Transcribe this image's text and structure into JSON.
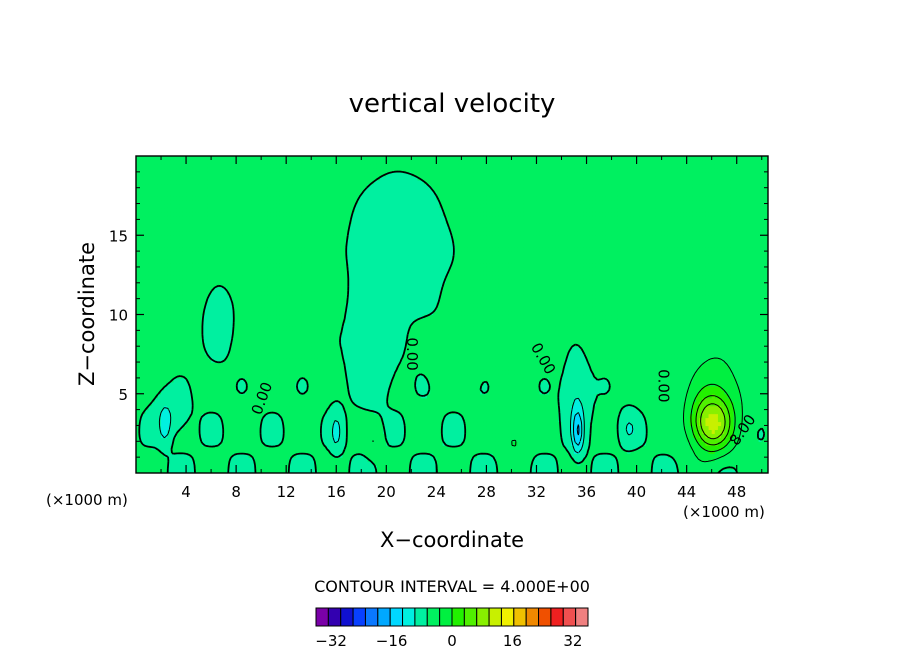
{
  "chart_data": {
    "type": "heatmap",
    "title": "vertical velocity",
    "xlabel": "X−coordinate",
    "ylabel": "Z−coordinate",
    "x_unit": "(×1000 m)",
    "x_unit_right": "(×1000 m)",
    "xlim": [
      0,
      50.5
    ],
    "ylim": [
      0,
      20
    ],
    "x_ticks": [
      4,
      8,
      12,
      16,
      20,
      24,
      28,
      32,
      36,
      40,
      44,
      48
    ],
    "x_tick_labels": [
      "4",
      "8",
      "12",
      "16",
      "20",
      "24",
      "28",
      "32",
      "36",
      "40",
      "44",
      "48"
    ],
    "y_ticks": [
      5,
      10,
      15
    ],
    "y_tick_labels": [
      "5",
      "10",
      "15"
    ],
    "contour_interval_text": "CONTOUR INTERVAL = 4.000E+00",
    "contour_interval": 4,
    "contour_labels": [
      {
        "text": "0.00",
        "x": 10.1,
        "z": 4.7,
        "angle": -70
      },
      {
        "text": "0.00",
        "x": 22.0,
        "z": 7.5,
        "angle": 90
      },
      {
        "text": "0.00",
        "x": 32.5,
        "z": 7.2,
        "angle": 60
      },
      {
        "text": "0.00",
        "x": 42.1,
        "z": 5.5,
        "angle": 90
      },
      {
        "text": "8.00",
        "x": 48.5,
        "z": 2.7,
        "angle": -55
      }
    ],
    "colorbar": {
      "min": -36,
      "max": 36,
      "step": 4,
      "tick_values": [
        -32,
        -16,
        0,
        16,
        32
      ],
      "tick_labels": [
        "−32",
        "−16",
        "0",
        "16",
        "32"
      ],
      "colors": [
        "#7a00a8",
        "#3300b0",
        "#1010d0",
        "#0840ff",
        "#0a78ff",
        "#00a8ff",
        "#00d8ff",
        "#00f0e0",
        "#00f0a0",
        "#00f060",
        "#00f040",
        "#22f000",
        "#50f000",
        "#88f000",
        "#c8f000",
        "#f0f000",
        "#f0c000",
        "#f08800",
        "#f05000",
        "#f02020",
        "#f05050",
        "#f08080"
      ]
    },
    "field_features": [
      {
        "x": 46.0,
        "z": 3.0,
        "value": 16
      },
      {
        "x": 45.8,
        "z": 3.5,
        "value": 12
      },
      {
        "x": 46.3,
        "z": 4.2,
        "value": 8
      },
      {
        "x": 46.3,
        "z": 5.3,
        "value": 4
      },
      {
        "x": 6.6,
        "z": 9.5,
        "value": -2
      },
      {
        "x": 18.8,
        "z": 7.5,
        "value": -4
      },
      {
        "x": 35.3,
        "z": 2.5,
        "value": -12
      },
      {
        "x": 2.3,
        "z": 3.0,
        "value": -6
      },
      {
        "x": 16.0,
        "z": 2.7,
        "value": -5
      },
      {
        "x": 30.2,
        "z": 2.0,
        "value": 4
      },
      {
        "x": 19.0,
        "z": 2.0,
        "value": 3
      }
    ],
    "grid": false,
    "legend": "bottom"
  }
}
